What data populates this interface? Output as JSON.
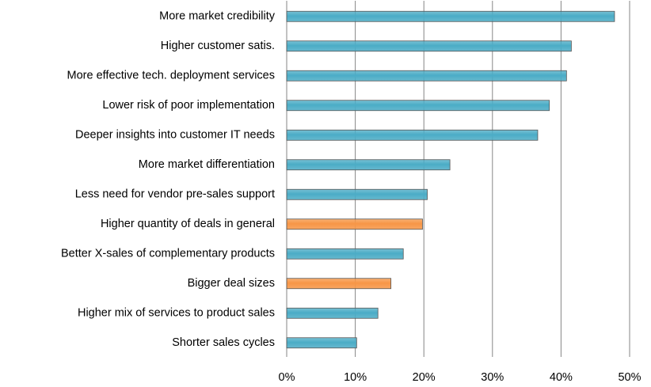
{
  "chart_data": {
    "type": "barh",
    "categories": [
      "More market credibility",
      "Higher customer satis.",
      "More effective tech. deployment services",
      "Lower risk of poor implementation",
      "Deeper insights into customer IT needs",
      "More market differentiation",
      "Less need for vendor pre-sales support",
      "Higher quantity of deals in general",
      "Better X-sales of complementary products",
      "Bigger deal sizes",
      "Higher mix of services to product sales",
      "Shorter sales cycles"
    ],
    "values": [
      47.8,
      41.5,
      40.8,
      38.3,
      36.6,
      23.8,
      20.5,
      19.8,
      17,
      15.2,
      13.3,
      10.2
    ],
    "colors": [
      "#4bacc6",
      "#4bacc6",
      "#4bacc6",
      "#4bacc6",
      "#4bacc6",
      "#4bacc6",
      "#4bacc6",
      "#f79646",
      "#4bacc6",
      "#f79646",
      "#4bacc6",
      "#4bacc6"
    ],
    "xlim": [
      0,
      50
    ],
    "xticks": [
      {
        "value": 0,
        "label": "0%"
      },
      {
        "value": 10,
        "label": "10%"
      },
      {
        "value": 20,
        "label": "20%"
      },
      {
        "value": 30,
        "label": "30%"
      },
      {
        "value": 40,
        "label": "40%"
      },
      {
        "value": 50,
        "label": "50%"
      }
    ],
    "grid": true
  }
}
